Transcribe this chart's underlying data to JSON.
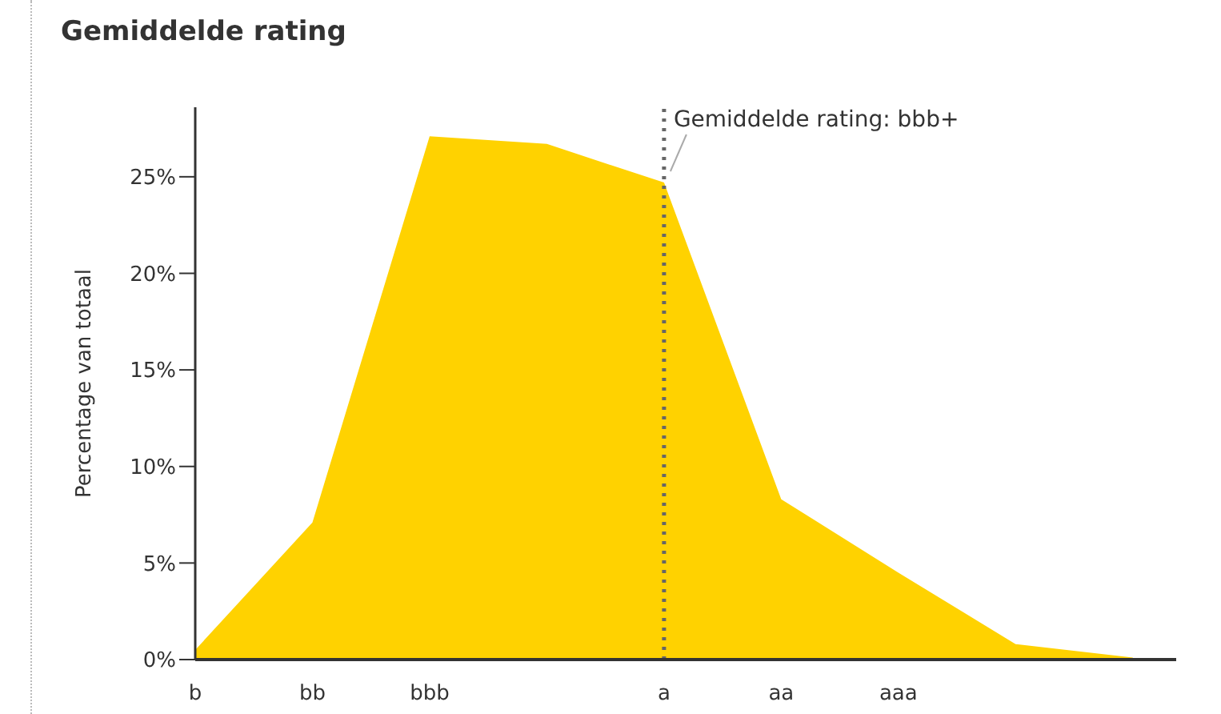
{
  "chart_data": {
    "type": "area",
    "title": "Gemiddelde rating",
    "ylabel": "Percentage van totaal",
    "categories": [
      "b",
      "bb",
      "bbb",
      null,
      "a",
      "aa",
      "aaa",
      null,
      null
    ],
    "values": [
      0.5,
      7.1,
      27.1,
      26.7,
      24.7,
      8.3,
      4.5,
      0.8,
      0.1
    ],
    "color": "#ffd200",
    "ylim": [
      0,
      28.6
    ],
    "yticks": [
      {
        "value": 0,
        "label": "0%"
      },
      {
        "value": 5,
        "label": "5%"
      },
      {
        "value": 10,
        "label": "10%"
      },
      {
        "value": 15,
        "label": "15%"
      },
      {
        "value": 20,
        "label": "20%"
      },
      {
        "value": 25,
        "label": "25%"
      }
    ],
    "ref_lines": [
      {
        "axis": "x",
        "value": "a",
        "label": "Gemiddelde rating: bbb+",
        "color": "#666666",
        "line_style": "dotted"
      }
    ],
    "grid": false,
    "legend": false
  }
}
